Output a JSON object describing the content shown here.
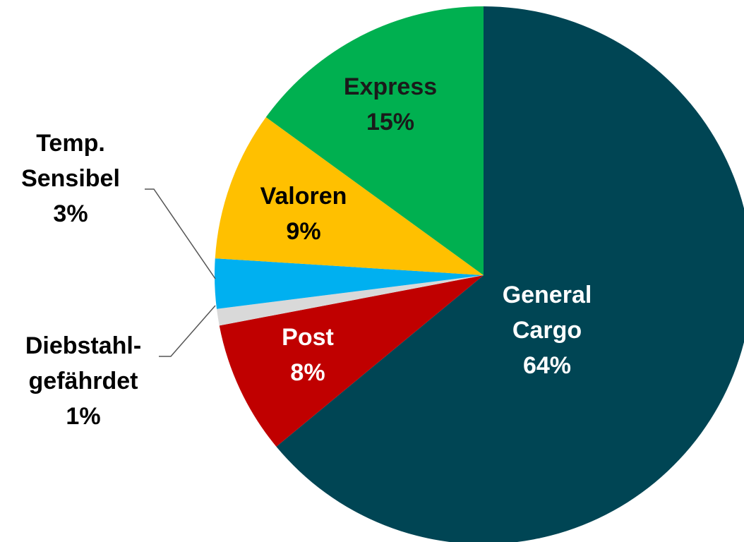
{
  "chart_data": {
    "type": "pie",
    "categories": [
      "General Cargo",
      "Post",
      "Diebstahl-gefährdet",
      "Temp. Sensibel",
      "Valoren",
      "Express"
    ],
    "values": [
      64,
      8,
      1,
      3,
      9,
      15
    ],
    "value_labels": [
      "64%",
      "8%",
      "1%",
      "3%",
      "9%",
      "15%"
    ],
    "colors": [
      "#004554",
      "#c00000",
      "#d9d9d9",
      "#00b0f0",
      "#ffc000",
      "#00b050"
    ],
    "start_angle": 0,
    "direction": "clockwise"
  }
}
